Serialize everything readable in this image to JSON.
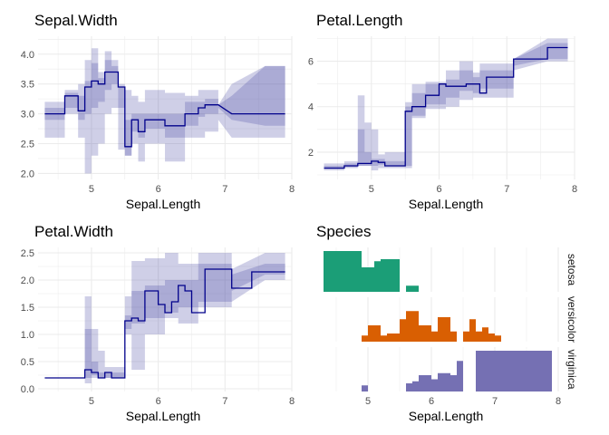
{
  "colors": {
    "line": "#00008b",
    "band": "#3f3fa0",
    "grid": "#ebebeb",
    "tick_text": "#4d4d4d",
    "setosa": "#1b9e77",
    "versicolor": "#d95f02",
    "virginica": "#7570b3"
  },
  "chart_data": [
    {
      "type": "line",
      "title": "Sepal.Width",
      "xlabel": "Sepal.Length",
      "ylabel": "",
      "xlim": [
        4.2,
        8.0
      ],
      "ylim": [
        1.9,
        4.3
      ],
      "xticks": [
        5,
        6,
        7,
        8
      ],
      "yticks": [
        2.0,
        2.5,
        3.0,
        3.5,
        4.0
      ],
      "ytick_labels": [
        "2.0",
        "2.5",
        "3.0",
        "3.5",
        "4.0"
      ],
      "x": [
        4.3,
        4.6,
        4.6,
        4.8,
        4.8,
        4.9,
        4.9,
        5.0,
        5.0,
        5.1,
        5.1,
        5.2,
        5.2,
        5.3,
        5.3,
        5.4,
        5.4,
        5.5,
        5.5,
        5.6,
        5.6,
        5.7,
        5.7,
        5.8,
        5.8,
        6.1,
        6.1,
        6.4,
        6.4,
        6.6,
        6.6,
        6.7,
        6.7,
        6.9,
        6.9,
        7.1,
        7.9
      ],
      "y": [
        3.0,
        3.0,
        3.3,
        3.3,
        3.05,
        3.05,
        3.45,
        3.45,
        3.55,
        3.55,
        3.5,
        3.5,
        3.7,
        3.7,
        3.7,
        3.7,
        3.45,
        3.45,
        2.45,
        2.45,
        2.9,
        2.9,
        2.7,
        2.7,
        2.9,
        2.9,
        2.8,
        2.8,
        3.0,
        3.0,
        3.1,
        3.1,
        3.15,
        3.15,
        3.15,
        3.0,
        3.0
      ],
      "bands": [
        {
          "name": "outer",
          "x": [
            4.3,
            4.6,
            4.6,
            4.8,
            4.8,
            4.9,
            4.9,
            5.0,
            5.0,
            5.1,
            5.1,
            5.2,
            5.2,
            5.3,
            5.3,
            5.4,
            5.4,
            5.5,
            5.5,
            5.6,
            5.6,
            5.7,
            5.7,
            5.8,
            5.8,
            6.1,
            6.1,
            6.4,
            6.4,
            6.6,
            6.6,
            6.7,
            6.7,
            6.9,
            6.9,
            7.1,
            7.6,
            7.9
          ],
          "lower": [
            2.6,
            2.6,
            3.0,
            3.0,
            2.6,
            2.6,
            2.0,
            2.0,
            2.3,
            2.3,
            2.5,
            2.5,
            3.0,
            3.0,
            3.1,
            3.1,
            2.4,
            2.4,
            2.3,
            2.3,
            2.5,
            2.5,
            2.2,
            2.2,
            2.5,
            2.5,
            2.2,
            2.2,
            2.6,
            2.6,
            2.6,
            2.6,
            2.7,
            2.7,
            2.9,
            2.6,
            2.6,
            2.6
          ],
          "upper": [
            3.2,
            3.2,
            3.4,
            3.4,
            3.5,
            3.5,
            3.9,
            3.9,
            4.1,
            4.1,
            3.7,
            3.7,
            4.05,
            4.05,
            3.9,
            3.9,
            3.45,
            3.45,
            3.4,
            3.4,
            3.3,
            3.3,
            3.2,
            3.2,
            3.4,
            3.4,
            3.35,
            3.35,
            3.3,
            3.3,
            3.4,
            3.4,
            3.4,
            3.4,
            3.15,
            3.5,
            3.8,
            3.8
          ]
        },
        {
          "name": "inner",
          "x": [
            4.3,
            4.6,
            4.6,
            4.8,
            4.8,
            4.9,
            4.9,
            5.0,
            5.0,
            5.1,
            5.1,
            5.2,
            5.2,
            5.3,
            5.3,
            5.4,
            5.4,
            5.5,
            5.5,
            5.6,
            5.6,
            5.7,
            5.7,
            5.8,
            5.8,
            6.1,
            6.1,
            6.4,
            6.4,
            6.6,
            6.6,
            6.7,
            6.7,
            6.9,
            6.9,
            7.1,
            7.6,
            7.9
          ],
          "lower": [
            2.9,
            2.9,
            3.1,
            3.1,
            2.9,
            2.9,
            3.0,
            3.0,
            3.1,
            3.1,
            3.2,
            3.2,
            3.4,
            3.4,
            3.5,
            3.5,
            3.1,
            3.1,
            2.3,
            2.3,
            2.7,
            2.7,
            2.6,
            2.6,
            2.75,
            2.75,
            2.6,
            2.6,
            2.8,
            2.8,
            2.95,
            2.95,
            3.0,
            3.0,
            3.1,
            2.9,
            2.8,
            2.8
          ],
          "upper": [
            3.1,
            3.1,
            3.35,
            3.35,
            3.3,
            3.3,
            3.55,
            3.55,
            3.85,
            3.85,
            3.6,
            3.6,
            3.9,
            3.9,
            3.8,
            3.8,
            3.5,
            3.5,
            2.9,
            2.9,
            3.0,
            3.0,
            3.0,
            3.0,
            3.0,
            3.0,
            3.0,
            3.0,
            3.2,
            3.2,
            3.2,
            3.2,
            3.25,
            3.25,
            3.15,
            3.3,
            3.8,
            3.8
          ]
        }
      ]
    },
    {
      "type": "line",
      "title": "Petal.Length",
      "xlabel": "Sepal.Length",
      "ylabel": "",
      "xlim": [
        4.2,
        8.0
      ],
      "ylim": [
        0.8,
        7.1
      ],
      "xticks": [
        5,
        6,
        7,
        8
      ],
      "yticks": [
        2,
        4,
        6
      ],
      "ytick_labels": [
        "2",
        "4",
        "6"
      ],
      "x": [
        4.3,
        4.6,
        4.6,
        4.8,
        4.8,
        5.0,
        5.0,
        5.1,
        5.1,
        5.2,
        5.2,
        5.5,
        5.5,
        5.6,
        5.6,
        5.7,
        5.7,
        5.8,
        5.8,
        6.0,
        6.0,
        6.1,
        6.1,
        6.4,
        6.4,
        6.5,
        6.5,
        6.6,
        6.6,
        6.7,
        6.7,
        7.1,
        7.1,
        7.4,
        7.4,
        7.6,
        7.6,
        7.9
      ],
      "y": [
        1.3,
        1.3,
        1.4,
        1.4,
        1.5,
        1.5,
        1.6,
        1.6,
        1.55,
        1.55,
        1.4,
        1.4,
        3.8,
        3.8,
        4.0,
        4.0,
        4.0,
        4.0,
        4.5,
        4.5,
        5.0,
        5.0,
        4.9,
        4.9,
        5.0,
        5.0,
        5.0,
        5.0,
        4.6,
        4.6,
        5.3,
        5.3,
        6.1,
        6.1,
        6.1,
        6.1,
        6.6,
        6.6
      ],
      "bands": [
        {
          "name": "outer",
          "x": [
            4.3,
            4.6,
            4.6,
            4.8,
            4.8,
            4.9,
            4.9,
            5.0,
            5.0,
            5.1,
            5.1,
            5.2,
            5.2,
            5.5,
            5.5,
            5.6,
            5.6,
            5.8,
            5.8,
            6.1,
            6.1,
            6.3,
            6.3,
            6.5,
            6.5,
            6.6,
            6.6,
            7.1,
            7.1,
            7.6,
            7.9
          ],
          "lower": [
            1.2,
            1.2,
            1.3,
            1.3,
            1.4,
            1.4,
            1.4,
            1.4,
            1.2,
            1.2,
            1.3,
            1.3,
            1.3,
            1.3,
            1.3,
            1.3,
            3.5,
            3.5,
            3.9,
            3.9,
            4.0,
            4.0,
            4.3,
            4.3,
            4.4,
            4.4,
            4.4,
            4.4,
            5.6,
            6.0,
            6.0
          ],
          "upper": [
            1.5,
            1.5,
            1.6,
            1.6,
            4.5,
            4.5,
            3.3,
            3.3,
            3.0,
            3.0,
            1.9,
            1.9,
            2.0,
            2.0,
            4.2,
            4.2,
            5.0,
            5.0,
            5.1,
            5.1,
            5.6,
            5.6,
            6.0,
            6.0,
            5.5,
            5.5,
            5.9,
            5.9,
            6.1,
            7.0,
            7.0
          ]
        },
        {
          "name": "inner",
          "x": [
            4.3,
            4.6,
            4.6,
            4.8,
            4.8,
            4.9,
            4.9,
            5.0,
            5.0,
            5.1,
            5.1,
            5.2,
            5.2,
            5.5,
            5.5,
            5.6,
            5.6,
            5.8,
            5.8,
            6.1,
            6.1,
            6.3,
            6.3,
            6.5,
            6.5,
            6.6,
            6.6,
            7.1,
            7.1,
            7.6,
            7.9
          ],
          "lower": [
            1.3,
            1.3,
            1.35,
            1.35,
            1.4,
            1.4,
            1.4,
            1.4,
            1.4,
            1.4,
            1.45,
            1.45,
            1.4,
            1.4,
            1.4,
            1.4,
            3.6,
            3.6,
            4.1,
            4.1,
            4.4,
            4.4,
            4.7,
            4.7,
            4.6,
            4.6,
            4.8,
            4.8,
            5.8,
            6.1,
            6.1
          ],
          "upper": [
            1.4,
            1.4,
            1.5,
            1.5,
            3.0,
            3.0,
            2.0,
            2.0,
            1.7,
            1.7,
            1.7,
            1.7,
            1.6,
            1.6,
            4.0,
            4.0,
            4.6,
            4.6,
            5.0,
            5.0,
            5.2,
            5.2,
            5.6,
            5.6,
            5.3,
            5.3,
            5.6,
            5.6,
            6.1,
            6.8,
            6.8
          ]
        }
      ]
    },
    {
      "type": "line",
      "title": "Petal.Width",
      "xlabel": "Sepal.Length",
      "ylabel": "",
      "xlim": [
        4.2,
        8.0
      ],
      "ylim": [
        -0.05,
        2.6
      ],
      "xticks": [
        5,
        6,
        7,
        8
      ],
      "yticks": [
        0.0,
        0.5,
        1.0,
        1.5,
        2.0,
        2.5
      ],
      "ytick_labels": [
        "0.0",
        "0.5",
        "1.0",
        "1.5",
        "2.0",
        "2.5"
      ],
      "x": [
        4.3,
        4.9,
        4.9,
        5.0,
        5.0,
        5.1,
        5.1,
        5.2,
        5.2,
        5.3,
        5.3,
        5.5,
        5.5,
        5.6,
        5.6,
        5.7,
        5.7,
        5.8,
        5.8,
        6.0,
        6.0,
        6.1,
        6.1,
        6.2,
        6.2,
        6.3,
        6.3,
        6.4,
        6.4,
        6.5,
        6.5,
        6.6,
        6.6,
        6.7,
        6.7,
        7.1,
        7.1,
        7.4,
        7.4,
        7.6,
        7.6,
        7.9
      ],
      "y": [
        0.2,
        0.2,
        0.35,
        0.35,
        0.3,
        0.3,
        0.2,
        0.2,
        0.3,
        0.3,
        0.2,
        0.2,
        1.25,
        1.25,
        1.3,
        1.3,
        1.25,
        1.25,
        1.8,
        1.8,
        1.55,
        1.55,
        1.4,
        1.4,
        1.6,
        1.6,
        1.9,
        1.9,
        1.8,
        1.8,
        1.4,
        1.4,
        1.4,
        1.4,
        2.2,
        2.2,
        1.85,
        1.85,
        2.15,
        2.15,
        2.15,
        2.15
      ],
      "bands": [
        {
          "name": "outer",
          "x": [
            4.3,
            4.9,
            4.9,
            5.0,
            5.0,
            5.1,
            5.1,
            5.2,
            5.2,
            5.3,
            5.3,
            5.5,
            5.5,
            5.6,
            5.6,
            5.8,
            5.8,
            6.1,
            6.1,
            6.3,
            6.3,
            6.6,
            6.6,
            7.1,
            7.1,
            7.6,
            7.9
          ],
          "lower": [
            0.2,
            0.2,
            0.1,
            0.1,
            0.2,
            0.2,
            0.2,
            0.2,
            0.2,
            0.2,
            0.2,
            0.2,
            1.0,
            1.0,
            0.35,
            0.35,
            1.0,
            1.0,
            1.3,
            1.3,
            1.2,
            1.2,
            1.5,
            1.5,
            1.6,
            2.0,
            2.0
          ],
          "upper": [
            0.2,
            0.2,
            1.7,
            1.7,
            1.1,
            1.1,
            0.7,
            0.7,
            0.4,
            0.4,
            0.4,
            0.4,
            1.7,
            1.7,
            2.35,
            2.35,
            2.4,
            2.4,
            2.5,
            2.5,
            2.3,
            2.3,
            2.5,
            2.5,
            2.2,
            2.5,
            2.5
          ]
        },
        {
          "name": "inner",
          "x": [
            4.3,
            4.9,
            4.9,
            5.0,
            5.0,
            5.1,
            5.1,
            5.2,
            5.2,
            5.3,
            5.3,
            5.5,
            5.5,
            5.6,
            5.6,
            5.8,
            5.8,
            6.1,
            6.1,
            6.3,
            6.3,
            6.6,
            6.6,
            7.1,
            7.1,
            7.6,
            7.9
          ],
          "lower": [
            0.2,
            0.2,
            0.2,
            0.2,
            0.25,
            0.25,
            0.2,
            0.2,
            0.2,
            0.2,
            0.2,
            0.2,
            1.1,
            1.1,
            1.2,
            1.2,
            1.3,
            1.3,
            1.4,
            1.4,
            1.5,
            1.5,
            1.6,
            1.6,
            1.8,
            2.1,
            2.1
          ],
          "upper": [
            0.2,
            0.2,
            1.1,
            1.1,
            0.5,
            0.5,
            0.3,
            0.3,
            0.3,
            0.3,
            0.3,
            0.3,
            1.35,
            1.35,
            1.8,
            1.8,
            1.9,
            1.9,
            2.0,
            2.0,
            2.0,
            2.0,
            2.3,
            2.3,
            2.1,
            2.3,
            2.3
          ]
        }
      ]
    },
    {
      "type": "area",
      "title": "Species",
      "xlabel": "Sepal.Length",
      "ylabel": "",
      "xlim": [
        4.2,
        8.0
      ],
      "xticks": [
        5,
        6,
        7,
        8
      ],
      "ylim": [
        0,
        1
      ],
      "facets": [
        {
          "name": "setosa",
          "x": [
            4.3,
            4.9,
            4.9,
            5.1,
            5.1,
            5.2,
            5.2,
            5.5,
            5.5,
            5.6,
            5.6,
            5.8
          ],
          "y": [
            1.0,
            1.0,
            0.6,
            0.6,
            0.75,
            0.75,
            0.8,
            0.8,
            0.0,
            0.0,
            0.15,
            0.15
          ]
        },
        {
          "name": "versicolor",
          "x": [
            4.9,
            4.9,
            5.0,
            5.0,
            5.2,
            5.2,
            5.3,
            5.3,
            5.5,
            5.5,
            5.6,
            5.6,
            5.8,
            5.8,
            6.0,
            6.0,
            6.1,
            6.1,
            6.3,
            6.3,
            6.4,
            6.4,
            6.5,
            6.5,
            6.6,
            6.6,
            6.7,
            6.7,
            6.8,
            6.8,
            6.9,
            6.9,
            7.0,
            7.0,
            7.1
          ],
          "y": [
            0.0,
            0.15,
            0.15,
            0.4,
            0.4,
            0.15,
            0.15,
            0.2,
            0.2,
            0.55,
            0.55,
            0.75,
            0.75,
            0.4,
            0.4,
            0.25,
            0.25,
            0.6,
            0.6,
            0.25,
            0.25,
            0.0,
            0.0,
            0.25,
            0.25,
            0.55,
            0.55,
            0.25,
            0.25,
            0.35,
            0.35,
            0.2,
            0.2,
            0.15,
            0.15
          ]
        },
        {
          "name": "virginica",
          "x": [
            4.9,
            4.9,
            5.0,
            5.0,
            5.5,
            5.5,
            5.6,
            5.6,
            5.7,
            5.7,
            5.8,
            5.8,
            6.0,
            6.0,
            6.1,
            6.1,
            6.3,
            6.3,
            6.4,
            6.4,
            6.5,
            6.5,
            6.7,
            6.7,
            6.8,
            6.8,
            7.0,
            7.0,
            7.1,
            7.1,
            7.9
          ],
          "y": [
            0.0,
            0.15,
            0.15,
            0.0,
            0.0,
            0.0,
            0.0,
            0.2,
            0.2,
            0.25,
            0.25,
            0.4,
            0.4,
            0.3,
            0.3,
            0.45,
            0.45,
            0.4,
            0.4,
            0.75,
            0.75,
            0.0,
            0.0,
            1.0,
            1.0,
            1.0,
            1.0,
            1.0,
            1.0,
            1.0,
            1.0
          ]
        }
      ]
    }
  ]
}
